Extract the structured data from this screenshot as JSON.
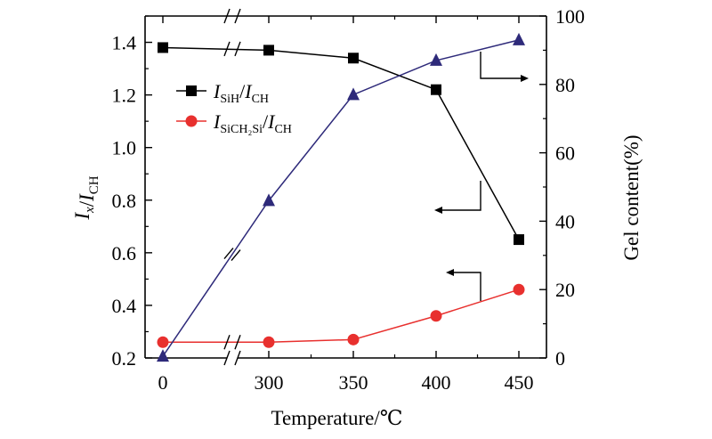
{
  "chart_data": {
    "type": "line",
    "categories": [
      "0",
      "300",
      "350",
      "400",
      "450"
    ],
    "x_values": [
      0,
      300,
      350,
      400,
      450
    ],
    "x_axis_break_between": [
      0,
      300
    ],
    "xlabel": "Temperature/℃",
    "ylabel_left": {
      "main": "I",
      "sub1": "x",
      "slash": "/",
      "main2": "I",
      "sub2": "CH"
    },
    "ylabel_right": "Gel content(%)",
    "ylim_left": [
      0.2,
      1.5
    ],
    "yticks_left": [
      "0.2",
      "0.4",
      "0.6",
      "0.8",
      "1.0",
      "1.2",
      "1.4"
    ],
    "ylim_right": [
      0,
      100
    ],
    "yticks_right": [
      "0",
      "20",
      "40",
      "60",
      "80",
      "100"
    ],
    "series": [
      {
        "name": "I_SiH/I_CH",
        "legend": {
          "main": "I",
          "sub1": "SiH",
          "slash": "/",
          "main2": "I",
          "sub2": "CH"
        },
        "axis": "left",
        "color": "#000000",
        "marker": "square",
        "values": [
          1.38,
          1.37,
          1.34,
          1.22,
          0.65
        ]
      },
      {
        "name": "I_SiCH2Si/I_CH",
        "legend": {
          "main": "I",
          "sub1": "SiCH₂Si",
          "slash": "/",
          "main2": "I",
          "sub2": "CH"
        },
        "axis": "left",
        "color": "#e8302e",
        "marker": "circle",
        "values": [
          0.26,
          0.26,
          0.27,
          0.36,
          0.46
        ]
      },
      {
        "name": "Gel content",
        "axis": "right",
        "color": "#2e2a7a",
        "marker": "triangle",
        "values": [
          0.5,
          46,
          77,
          87,
          93
        ]
      }
    ],
    "annotations": [
      {
        "type": "arrow",
        "points_to": "right-axis",
        "near_series": "Gel content"
      },
      {
        "type": "arrow",
        "points_to": "left-axis",
        "near_series": "I_SiH/I_CH"
      },
      {
        "type": "arrow",
        "points_to": "left-axis",
        "near_series": "I_SiCH2Si/I_CH"
      }
    ]
  }
}
